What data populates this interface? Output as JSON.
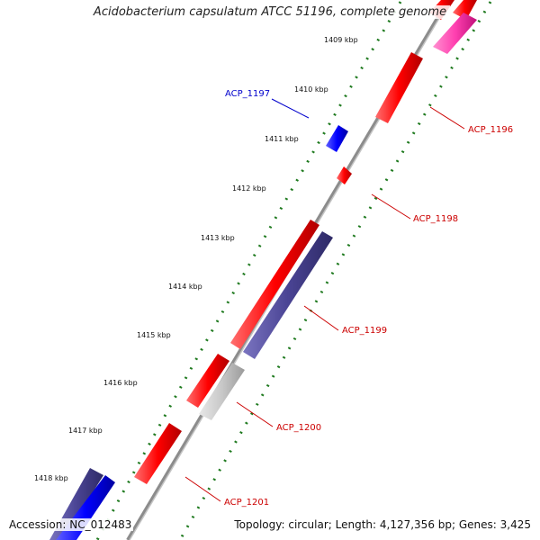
{
  "title": "Acidobacterium capsulatum ATCC 51196, complete genome",
  "footer": {
    "accession": "Accession: NC_012483",
    "summary": "Topology: circular; Length: 4,127,356 bp; Genes: 3,425"
  },
  "colors": {
    "backbone": "#8c8c8c",
    "tick": "#1f7a1f",
    "forward_gene": "#ff0000",
    "reverse_gene": "#4a4494",
    "forward_other": "#0000ff",
    "grey_feature": "#c8c8c8",
    "pink_feature": "#ff40b0",
    "label_forward": "#cc0000",
    "label_reverse": "#0000cc"
  },
  "kbp_labels": [
    "1409 kbp",
    "1410 kbp",
    "1411 kbp",
    "1412 kbp",
    "1413 kbp",
    "1414 kbp",
    "1415 kbp",
    "1416 kbp",
    "1417 kbp",
    "1418 kbp"
  ],
  "gene_labels": [
    {
      "text": "ACP_1197",
      "color": "#0000cc"
    },
    {
      "text": "ACP_1196",
      "color": "#cc0000"
    },
    {
      "text": "ACP_1198",
      "color": "#cc0000"
    },
    {
      "text": "ACP_1199",
      "color": "#cc0000"
    },
    {
      "text": "ACP_1200",
      "color": "#cc0000"
    },
    {
      "text": "ACP_1201",
      "color": "#cc0000"
    }
  ]
}
